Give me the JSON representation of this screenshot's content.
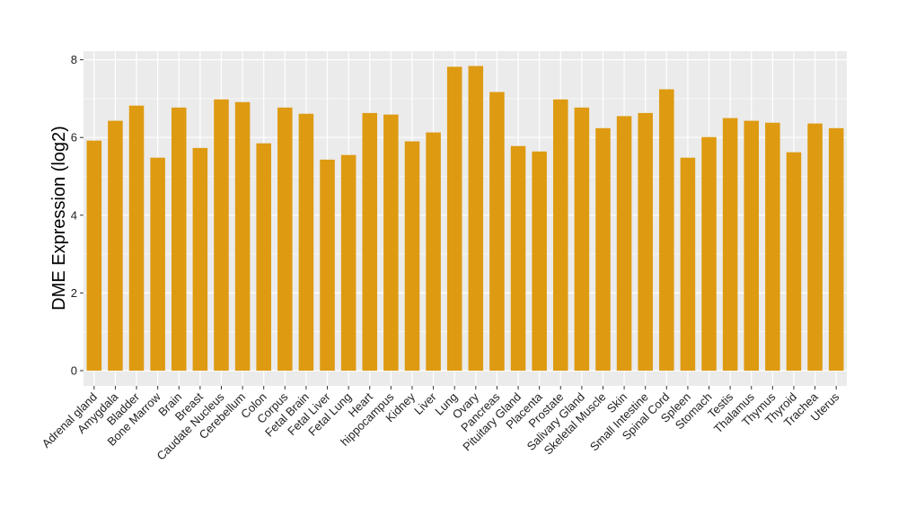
{
  "chart_data": {
    "type": "bar",
    "title": "",
    "xlabel": "",
    "ylabel": "DME Expression (log2)",
    "ylim": [
      -0.35,
      8.25
    ],
    "yticks": [
      0,
      2,
      4,
      6,
      8
    ],
    "grid": true,
    "legend": "none",
    "bar_color": "#DE9A11",
    "panel_color": "#EBEBEB",
    "categories": [
      "Adrenal gland",
      "Amygdala",
      "Bladder",
      "Bone Marrow",
      "Brain",
      "Breast",
      "Caudate Nucleus",
      "Cerebellum",
      "Colon",
      "Corpus",
      "Fetal Brain",
      "Fetal Liver",
      "Fetal Lung",
      "Heart",
      "hippocampus",
      "Kidney",
      "Liver",
      "Lung",
      "Ovary",
      "Pancreas",
      "Pituitary Gland",
      "Placenta",
      "Prostate",
      "Salivary Gland",
      "Skeletal Muscle",
      "Skin",
      "Small Intestine",
      "Spinal Cord",
      "Spleen",
      "Stomach",
      "Testis",
      "Thalamus",
      "Thymus",
      "Thyroid",
      "Trachea",
      "Uterus"
    ],
    "values": [
      5.92,
      6.43,
      6.82,
      5.48,
      6.77,
      5.73,
      6.98,
      6.91,
      5.85,
      6.77,
      6.61,
      5.43,
      5.55,
      6.63,
      6.59,
      5.9,
      6.13,
      7.82,
      7.84,
      7.17,
      5.78,
      5.64,
      6.98,
      6.77,
      6.24,
      6.55,
      6.63,
      7.24,
      5.48,
      6.01,
      6.5,
      6.43,
      6.38,
      5.62,
      6.36,
      6.24
    ]
  }
}
